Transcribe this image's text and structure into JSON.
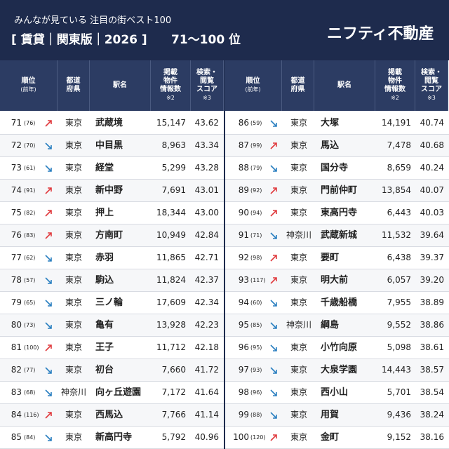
{
  "header": {
    "subtitle": "みんなが見ている 注目の街ベスト100",
    "edition": "[ 賃貸｜関東版｜2026 ]",
    "range": "71〜100 位",
    "brand": "ニフティ不動産"
  },
  "columns": [
    {
      "lines": [
        "順位",
        "(前年)"
      ]
    },
    {
      "lines": [
        "都道",
        "府県"
      ]
    },
    {
      "lines": [
        "駅名"
      ]
    },
    {
      "lines": [
        "掲載",
        "物件",
        "情報数",
        "※2"
      ]
    },
    {
      "lines": [
        "検索・",
        "閲覧",
        "スコア",
        "※3"
      ]
    }
  ],
  "tables": [
    {
      "rows": [
        {
          "rank": "71",
          "prev": "(76)",
          "trend": "up",
          "pref": "東京",
          "station": "武蔵境",
          "listings": "15,147",
          "score": "43.62"
        },
        {
          "rank": "72",
          "prev": "(70)",
          "trend": "down",
          "pref": "東京",
          "station": "中目黒",
          "listings": "8,963",
          "score": "43.34"
        },
        {
          "rank": "73",
          "prev": "(61)",
          "trend": "down",
          "pref": "東京",
          "station": "経堂",
          "listings": "5,299",
          "score": "43.28"
        },
        {
          "rank": "74",
          "prev": "(91)",
          "trend": "up",
          "pref": "東京",
          "station": "新中野",
          "listings": "7,691",
          "score": "43.01"
        },
        {
          "rank": "75",
          "prev": "(82)",
          "trend": "up",
          "pref": "東京",
          "station": "押上",
          "listings": "18,344",
          "score": "43.00"
        },
        {
          "rank": "76",
          "prev": "(83)",
          "trend": "up",
          "pref": "東京",
          "station": "方南町",
          "listings": "10,949",
          "score": "42.84"
        },
        {
          "rank": "77",
          "prev": "(62)",
          "trend": "down",
          "pref": "東京",
          "station": "赤羽",
          "listings": "11,865",
          "score": "42.71"
        },
        {
          "rank": "78",
          "prev": "(57)",
          "trend": "down",
          "pref": "東京",
          "station": "駒込",
          "listings": "11,824",
          "score": "42.37"
        },
        {
          "rank": "79",
          "prev": "(65)",
          "trend": "down",
          "pref": "東京",
          "station": "三ノ輪",
          "listings": "17,609",
          "score": "42.34"
        },
        {
          "rank": "80",
          "prev": "(73)",
          "trend": "down",
          "pref": "東京",
          "station": "亀有",
          "listings": "13,928",
          "score": "42.23"
        },
        {
          "rank": "81",
          "prev": "(100)",
          "trend": "up",
          "pref": "東京",
          "station": "王子",
          "listings": "11,712",
          "score": "42.18"
        },
        {
          "rank": "82",
          "prev": "(77)",
          "trend": "down",
          "pref": "東京",
          "station": "初台",
          "listings": "7,660",
          "score": "41.72"
        },
        {
          "rank": "83",
          "prev": "(68)",
          "trend": "down",
          "pref": "神奈川",
          "station": "向ヶ丘遊園",
          "listings": "7,172",
          "score": "41.64"
        },
        {
          "rank": "84",
          "prev": "(116)",
          "trend": "up",
          "pref": "東京",
          "station": "西馬込",
          "listings": "7,766",
          "score": "41.14"
        },
        {
          "rank": "85",
          "prev": "(84)",
          "trend": "down",
          "pref": "東京",
          "station": "新高円寺",
          "listings": "5,792",
          "score": "40.96"
        }
      ]
    },
    {
      "rows": [
        {
          "rank": "86",
          "prev": "(59)",
          "trend": "down",
          "pref": "東京",
          "station": "大塚",
          "listings": "14,191",
          "score": "40.74"
        },
        {
          "rank": "87",
          "prev": "(99)",
          "trend": "up",
          "pref": "東京",
          "station": "馬込",
          "listings": "7,478",
          "score": "40.68"
        },
        {
          "rank": "88",
          "prev": "(79)",
          "trend": "down",
          "pref": "東京",
          "station": "国分寺",
          "listings": "8,659",
          "score": "40.24"
        },
        {
          "rank": "89",
          "prev": "(92)",
          "trend": "up",
          "pref": "東京",
          "station": "門前仲町",
          "listings": "13,854",
          "score": "40.07"
        },
        {
          "rank": "90",
          "prev": "(94)",
          "trend": "up",
          "pref": "東京",
          "station": "東高円寺",
          "listings": "6,443",
          "score": "40.03"
        },
        {
          "rank": "91",
          "prev": "(71)",
          "trend": "down",
          "pref": "神奈川",
          "station": "武蔵新城",
          "listings": "11,532",
          "score": "39.64"
        },
        {
          "rank": "92",
          "prev": "(98)",
          "trend": "up",
          "pref": "東京",
          "station": "要町",
          "listings": "6,438",
          "score": "39.37"
        },
        {
          "rank": "93",
          "prev": "(117)",
          "trend": "up",
          "pref": "東京",
          "station": "明大前",
          "listings": "6,057",
          "score": "39.20"
        },
        {
          "rank": "94",
          "prev": "(60)",
          "trend": "down",
          "pref": "東京",
          "station": "千歳船橋",
          "listings": "7,955",
          "score": "38.89"
        },
        {
          "rank": "95",
          "prev": "(85)",
          "trend": "down",
          "pref": "神奈川",
          "station": "綱島",
          "listings": "9,552",
          "score": "38.86"
        },
        {
          "rank": "96",
          "prev": "(95)",
          "trend": "down",
          "pref": "東京",
          "station": "小竹向原",
          "listings": "5,098",
          "score": "38.61"
        },
        {
          "rank": "97",
          "prev": "(93)",
          "trend": "down",
          "pref": "東京",
          "station": "大泉学園",
          "listings": "14,443",
          "score": "38.57"
        },
        {
          "rank": "98",
          "prev": "(96)",
          "trend": "down",
          "pref": "東京",
          "station": "西小山",
          "listings": "5,701",
          "score": "38.54"
        },
        {
          "rank": "99",
          "prev": "(88)",
          "trend": "down",
          "pref": "東京",
          "station": "用賀",
          "listings": "9,436",
          "score": "38.24"
        },
        {
          "rank": "100",
          "prev": "(120)",
          "trend": "up",
          "pref": "東京",
          "station": "金町",
          "listings": "9,152",
          "score": "38.16"
        }
      ]
    }
  ]
}
